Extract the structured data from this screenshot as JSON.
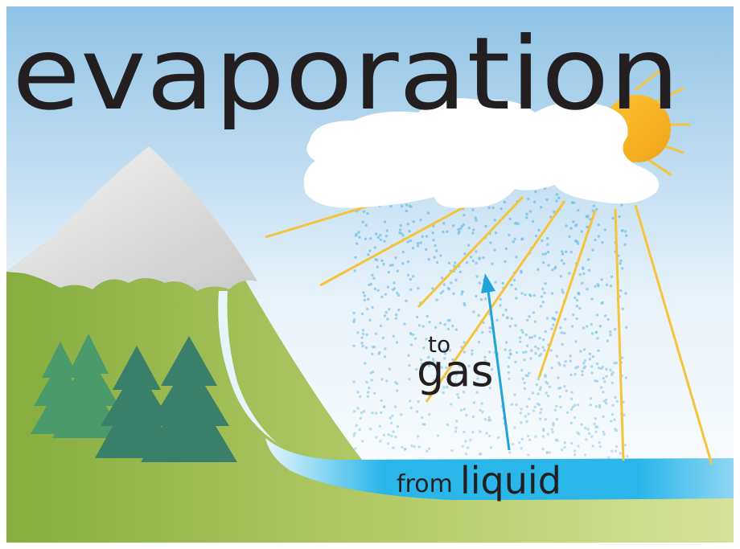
{
  "title": "evaporation",
  "arrow_label": {
    "top": "to",
    "bottom": "gas"
  },
  "water_label": {
    "small": "from",
    "large": "liquid"
  }
}
